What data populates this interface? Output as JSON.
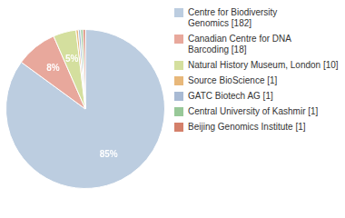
{
  "chart_data": {
    "type": "pie",
    "categories": [
      "Centre for Biodiversity\nGenomics [182]",
      "Canadian Centre for DNA\nBarcoding [18]",
      "Natural History Museum, London [10]",
      "Source BioScience [1]",
      "GATC Biotech AG [1]",
      "Central University of Kashmir [1]",
      "Beijing Genomics Institute [1]"
    ],
    "values": [
      85.05,
      8.41,
      4.67,
      0.47,
      0.47,
      0.47,
      0.47
    ],
    "value_labels": [
      "85%",
      "8%",
      "5%",
      null,
      null,
      null,
      null
    ],
    "data_labels": true,
    "colors": [
      "#bccde0",
      "#e8a89c",
      "#d4df9e",
      "#e8b87a",
      "#a8bad4",
      "#98c898",
      "#d4806a"
    ],
    "legend": "right"
  }
}
